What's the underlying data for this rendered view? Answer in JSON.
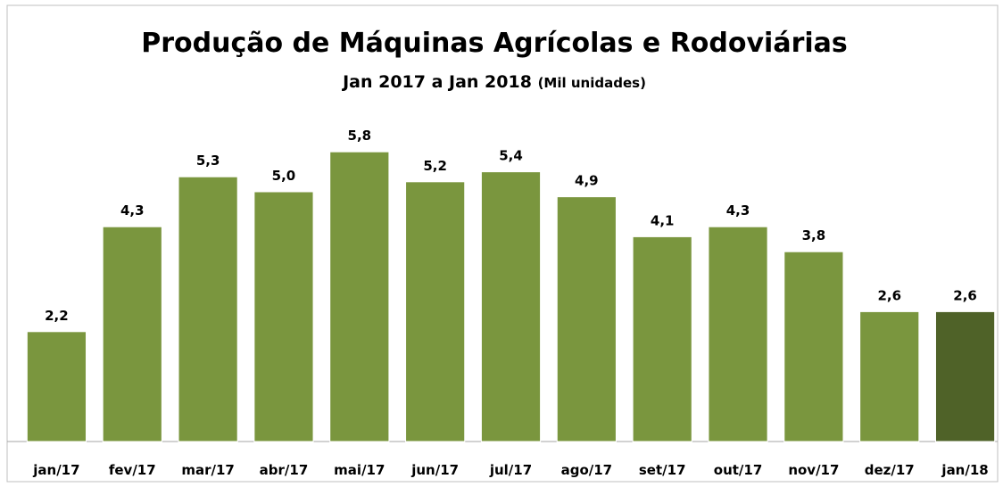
{
  "chart_data": {
    "type": "bar",
    "title": "Produção de Máquinas Agrícolas e Rodoviárias",
    "subtitle": "Jan 2017 a Jan 2018",
    "unit_label": "(Mil unidades)",
    "categories": [
      "jan/17",
      "fev/17",
      "mar/17",
      "abr/17",
      "mai/17",
      "jun/17",
      "jul/17",
      "ago/17",
      "set/17",
      "out/17",
      "nov/17",
      "dez/17",
      "jan/18"
    ],
    "values": [
      2.2,
      4.3,
      5.3,
      5.0,
      5.8,
      5.2,
      5.4,
      4.9,
      4.1,
      4.3,
      3.8,
      2.6,
      2.6
    ],
    "value_labels": [
      "2,2",
      "4,3",
      "5,3",
      "5,0",
      "5,8",
      "5,2",
      "5,4",
      "4,9",
      "4,1",
      "4,3",
      "3,8",
      "2,6",
      "2,6"
    ],
    "colors": [
      "#7a963e",
      "#7a963e",
      "#7a963e",
      "#7a963e",
      "#7a963e",
      "#7a963e",
      "#7a963e",
      "#7a963e",
      "#7a963e",
      "#7a963e",
      "#7a963e",
      "#7a963e",
      "#4f6228"
    ],
    "ylim": [
      0,
      6
    ]
  }
}
